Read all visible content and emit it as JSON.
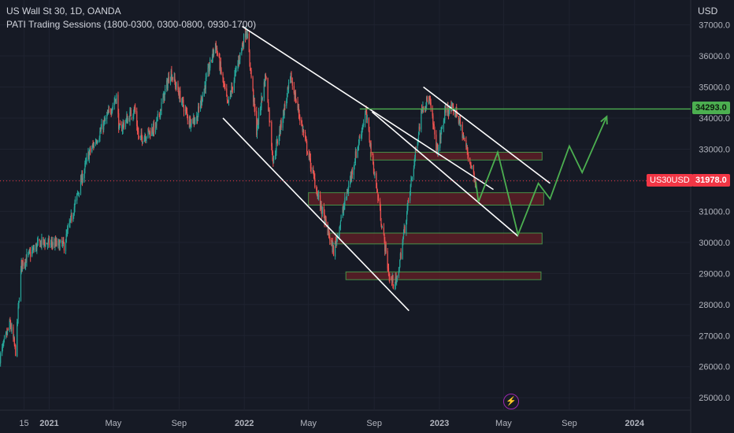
{
  "header": {
    "title": "US Wall St 30, 1D, OANDA",
    "subtitle": "PATI Trading Sessions (1800-0300, 0300-0800, 0930-1700)"
  },
  "axis_unit": "USD",
  "tags": {
    "resistance_price": "34293.0",
    "current_symbol": "US30USD",
    "current_price": "31978.0"
  },
  "lightning_icon": "lightning-icon",
  "colors": {
    "background": "#161a25",
    "up_candle": "#26a69a",
    "down_candle": "#ef5350",
    "channel": "#ffffff",
    "resistance": "#4caf50",
    "projection": "#4caf50",
    "zone_fill": "#5c1f26",
    "zone_border": "#4caf50",
    "current_price_line": "#f23645"
  },
  "chart_data": {
    "type": "candlestick",
    "title": "US Wall St 30, 1D, OANDA",
    "ylabel": "USD",
    "ylim": [
      24600,
      37800
    ],
    "xlim": [
      "2020-10-01",
      "2024-04-15"
    ],
    "y_ticks": [
      "25000.0",
      "26000.0",
      "27000.0",
      "28000.0",
      "29000.0",
      "30000.0",
      "31000.0",
      "32000.0",
      "33000.0",
      "34000.0",
      "35000.0",
      "36000.0",
      "37000.0"
    ],
    "x_ticks": [
      {
        "label": "15",
        "date": "2020-11-15"
      },
      {
        "label": "2021",
        "date": "2021-01-01"
      },
      {
        "label": "May",
        "date": "2021-05-01"
      },
      {
        "label": "Sep",
        "date": "2021-09-01"
      },
      {
        "label": "2022",
        "date": "2022-01-01"
      },
      {
        "label": "May",
        "date": "2022-05-01"
      },
      {
        "label": "Sep",
        "date": "2022-09-01"
      },
      {
        "label": "2023",
        "date": "2023-01-01"
      },
      {
        "label": "May",
        "date": "2023-05-01"
      },
      {
        "label": "Sep",
        "date": "2023-09-01"
      },
      {
        "label": "2024",
        "date": "2024-01-01"
      }
    ],
    "price_path": [
      [
        "2020-10-01",
        26300
      ],
      [
        "2020-10-20",
        27400
      ],
      [
        "2020-10-30",
        26500
      ],
      [
        "2020-11-10",
        29300
      ],
      [
        "2020-12-15",
        30000
      ],
      [
        "2021-01-29",
        29900
      ],
      [
        "2021-02-24",
        31600
      ],
      [
        "2021-03-15",
        32800
      ],
      [
        "2021-04-05",
        33500
      ],
      [
        "2021-05-07",
        34700
      ],
      [
        "2021-05-12",
        33600
      ],
      [
        "2021-06-10",
        34300
      ],
      [
        "2021-06-18",
        33300
      ],
      [
        "2021-07-19",
        33700
      ],
      [
        "2021-08-16",
        35500
      ],
      [
        "2021-09-20",
        33900
      ],
      [
        "2021-10-04",
        34000
      ],
      [
        "2021-11-08",
        36400
      ],
      [
        "2021-12-01",
        34400
      ],
      [
        "2022-01-05",
        36900
      ],
      [
        "2022-01-24",
        33600
      ],
      [
        "2022-02-10",
        35400
      ],
      [
        "2022-02-24",
        32600
      ],
      [
        "2022-03-29",
        35300
      ],
      [
        "2022-05-20",
        31400
      ],
      [
        "2022-06-17",
        29700
      ],
      [
        "2022-08-16",
        34200
      ],
      [
        "2022-09-30",
        28800
      ],
      [
        "2022-10-13",
        28700
      ],
      [
        "2022-11-30",
        34400
      ],
      [
        "2022-12-13",
        34600
      ],
      [
        "2022-12-28",
        32900
      ],
      [
        "2023-01-13",
        34300
      ],
      [
        "2023-02-02",
        34200
      ],
      [
        "2023-02-24",
        32800
      ],
      [
        "2023-03-10",
        31950
      ]
    ],
    "current_price": 31978.0,
    "annotations": {
      "horizontal_line": 34293.0,
      "descending_channel_main": {
        "upper": [
          [
            "2021-12-28",
            36950
          ],
          [
            "2023-04-12",
            31700
          ]
        ],
        "lower": [
          [
            "2021-11-22",
            34000
          ],
          [
            "2022-11-05",
            27800
          ]
        ]
      },
      "descending_channel_recent": {
        "upper": [
          [
            "2022-12-02",
            35000
          ],
          [
            "2023-07-27",
            31900
          ]
        ],
        "lower": [
          [
            "2022-08-28",
            34200
          ],
          [
            "2023-05-28",
            30200
          ]
        ]
      },
      "zones": [
        {
          "from": "2022-08-25",
          "to": "2023-07-12",
          "low": 32650,
          "high": 32900
        },
        {
          "from": "2022-05-01",
          "to": "2023-07-15",
          "low": 31200,
          "high": 31600
        },
        {
          "from": "2022-06-10",
          "to": "2023-07-12",
          "low": 29950,
          "high": 30300
        },
        {
          "from": "2022-07-10",
          "to": "2023-07-10",
          "low": 28800,
          "high": 29050
        }
      ],
      "projection_path": [
        [
          "2023-03-10",
          31950
        ],
        [
          "2023-03-15",
          31300
        ],
        [
          "2023-04-20",
          32900
        ],
        [
          "2023-05-28",
          30250
        ],
        [
          "2023-07-05",
          31900
        ],
        [
          "2023-07-27",
          31400
        ],
        [
          "2023-09-01",
          33100
        ],
        [
          "2023-09-25",
          32250
        ],
        [
          "2023-11-10",
          34050
        ]
      ]
    }
  }
}
